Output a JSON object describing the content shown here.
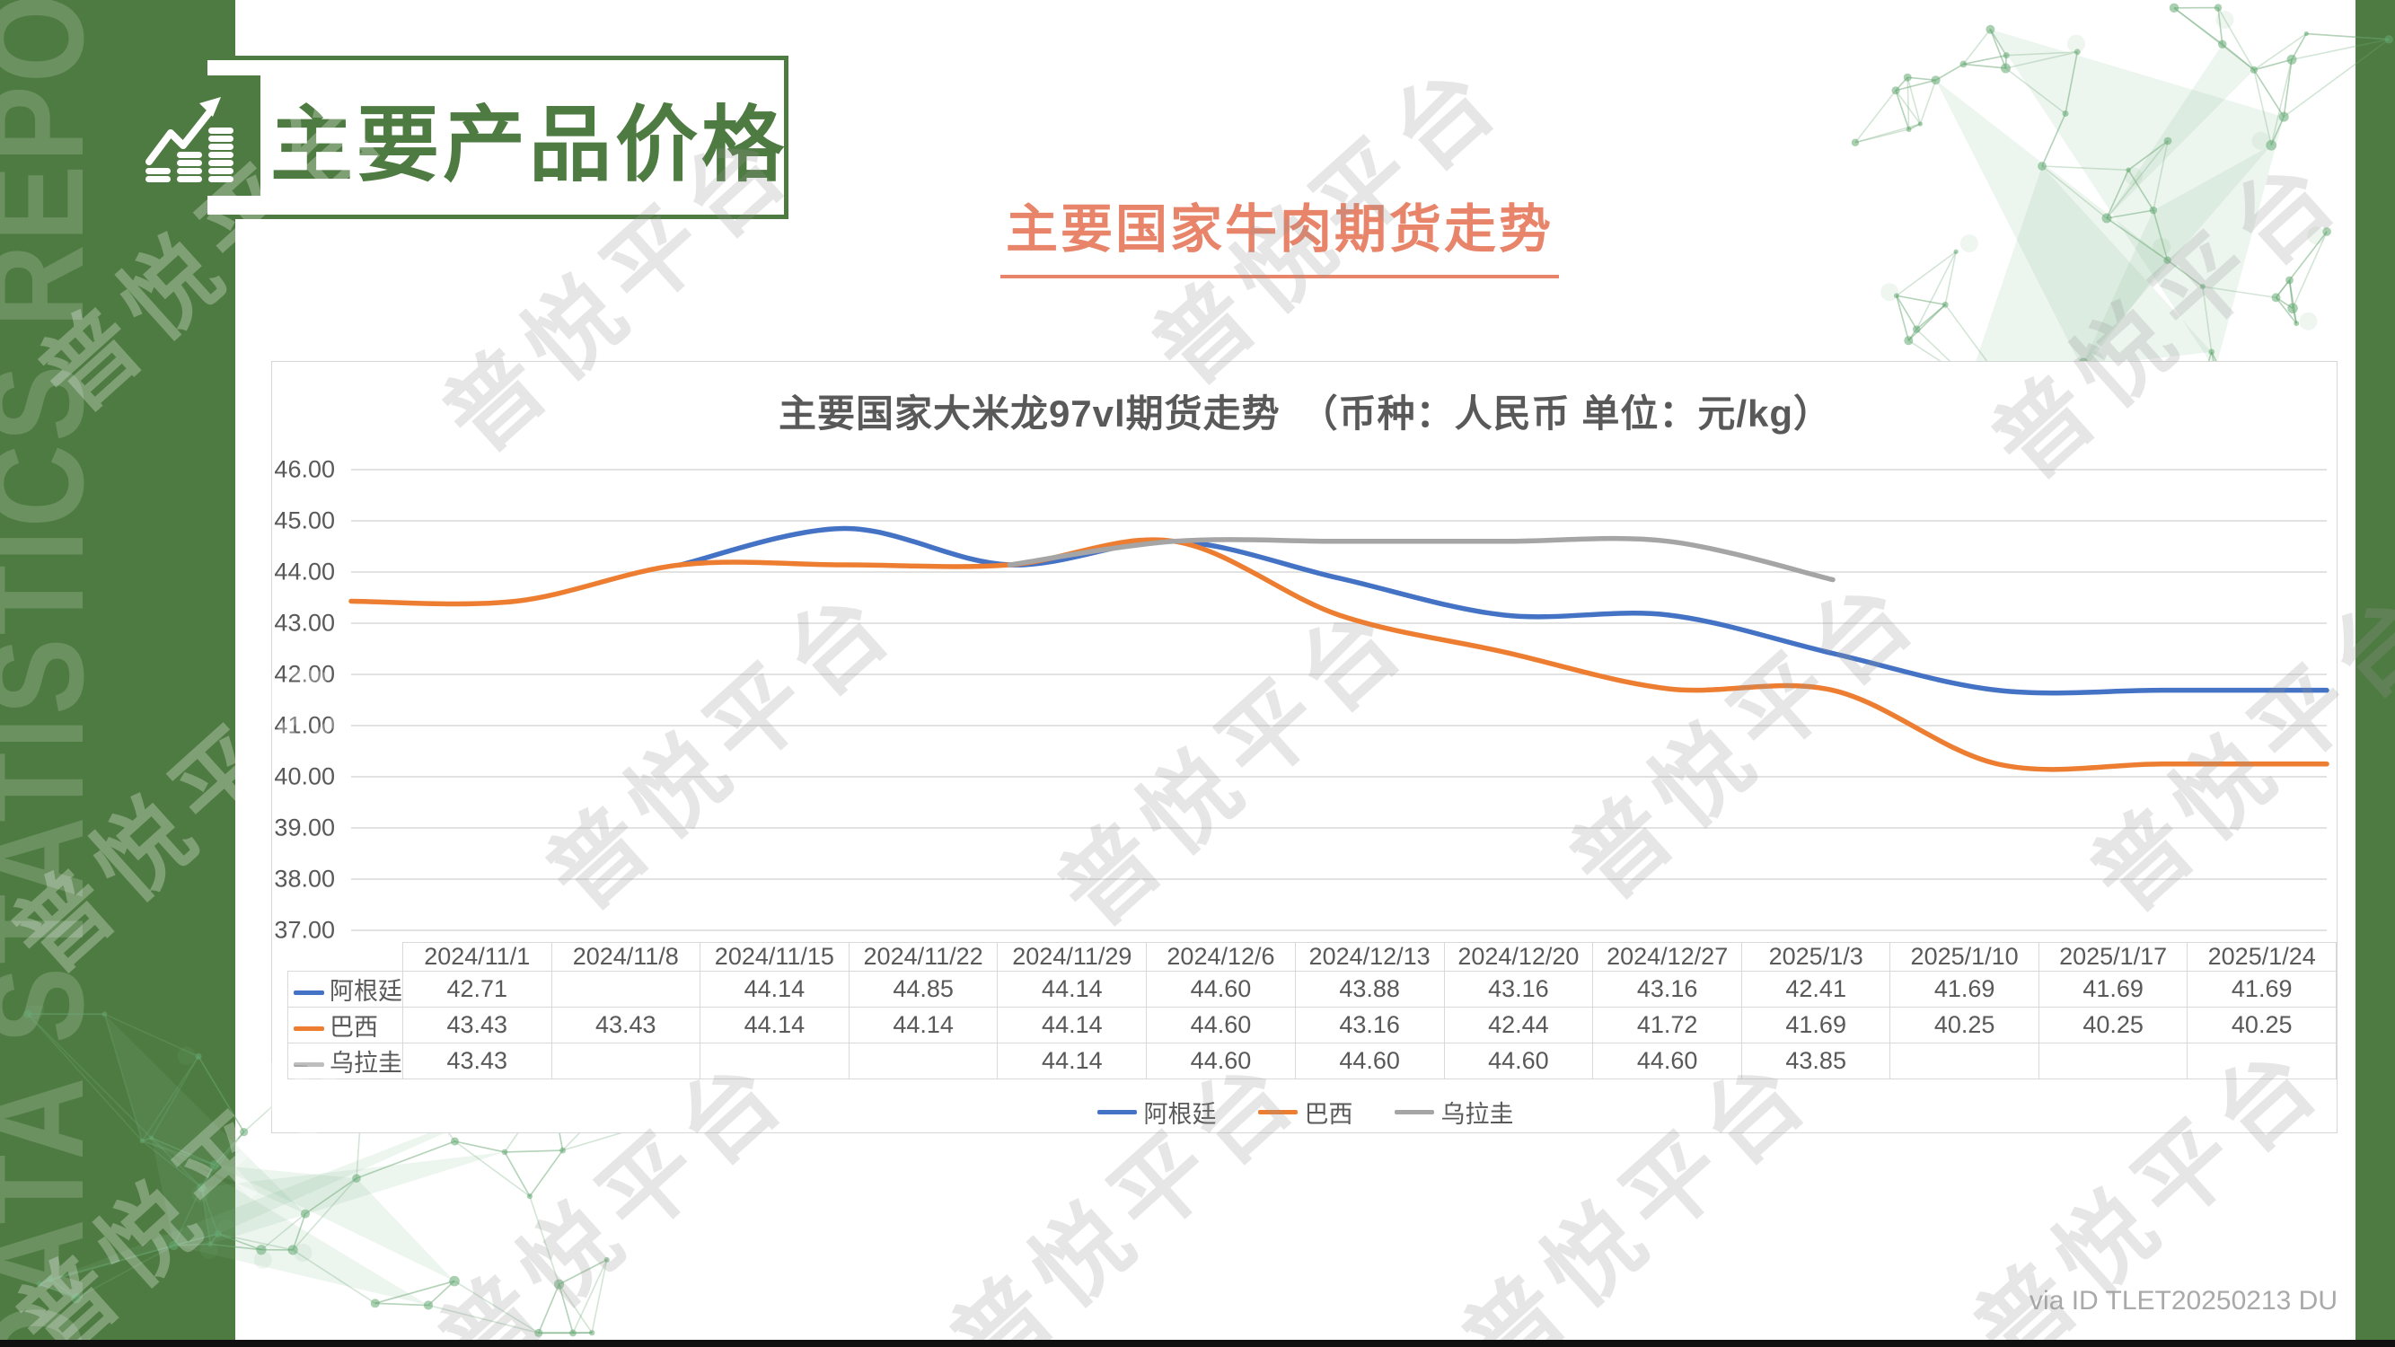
{
  "page": {
    "sidebar_vertical_text": "DATA STATISTICS REPORT",
    "watermark_text": "普悦平台",
    "credit": "via ID TLET20250213 DU"
  },
  "header": {
    "title": "主要产品价格",
    "icon": "coins-growth-icon"
  },
  "subtitle": {
    "text": "主要国家牛肉期货走势"
  },
  "colors": {
    "theme_green": "#4E7B41",
    "subtitle_coral": "#E8846A",
    "chart_text_gray": "#595959",
    "grid_gray": "#d9d9d9",
    "series_blue": "#4472C4",
    "series_orange": "#ED7D31",
    "series_gray": "#A5A5A5"
  },
  "chart_data": {
    "type": "line",
    "title": "主要国家大米龙97vl期货走势　（币种：人民币 单位：元/kg）",
    "categories": [
      "2024/11/1",
      "2024/11/8",
      "2024/11/15",
      "2024/11/22",
      "2024/11/29",
      "2024/12/6",
      "2024/12/13",
      "2024/12/20",
      "2024/12/27",
      "2025/1/3",
      "2025/1/10",
      "2025/1/17",
      "2025/1/24"
    ],
    "series": [
      {
        "name": "阿根廷",
        "color": "#4472C4",
        "values": [
          42.71,
          null,
          44.14,
          44.85,
          44.14,
          44.6,
          43.88,
          43.16,
          43.16,
          42.41,
          41.69,
          41.69,
          41.69
        ]
      },
      {
        "name": "巴西",
        "color": "#ED7D31",
        "values": [
          43.43,
          43.43,
          44.14,
          44.14,
          44.14,
          44.6,
          43.16,
          42.44,
          41.72,
          41.69,
          40.25,
          40.25,
          40.25
        ]
      },
      {
        "name": "乌拉圭",
        "color": "#A5A5A5",
        "values": [
          43.43,
          null,
          null,
          null,
          44.14,
          44.6,
          44.6,
          44.6,
          44.6,
          43.85,
          null,
          null,
          null
        ]
      }
    ],
    "ylim": [
      37,
      46
    ],
    "ytick_step": 1,
    "ytick_format_decimals": 2,
    "grid": true,
    "smooth": true,
    "legend_position": "bottom",
    "data_table_shown": true
  }
}
